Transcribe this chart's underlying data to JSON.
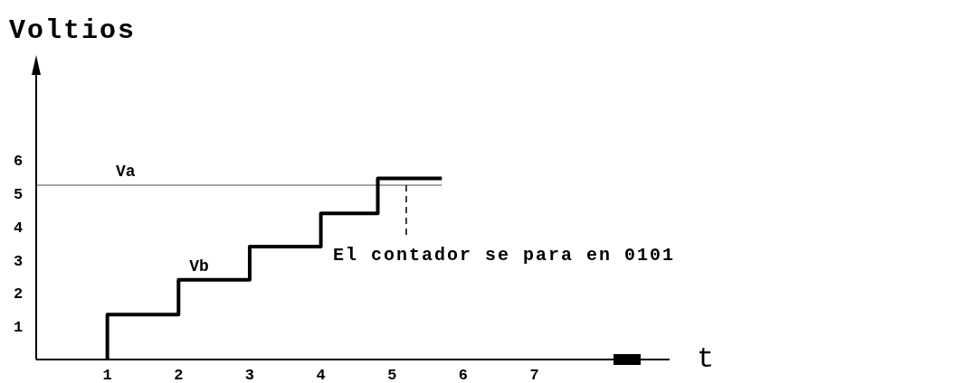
{
  "chart_data": {
    "type": "step",
    "ylabel": "Voltios",
    "xlabel": "t",
    "xlim": [
      0,
      8.9
    ],
    "ylim": [
      0,
      9
    ],
    "xticks": [
      1,
      2,
      3,
      4,
      5,
      6,
      7
    ],
    "yticks": [
      1,
      2,
      3,
      4,
      5,
      6
    ],
    "series": [
      {
        "name": "Vb",
        "color": "#000000",
        "x": [
          1,
          1,
          2,
          3,
          4,
          4.8,
          5.7
        ],
        "values": [
          0,
          1.35,
          2.4,
          3.4,
          4.4,
          5.45,
          5.45
        ]
      }
    ],
    "ref_lines": [
      {
        "axis": "y",
        "value": 5.25,
        "label": "Va",
        "color": "#888888"
      }
    ],
    "annotations": [
      {
        "text": "El contador se para en 0101",
        "x": 5.2,
        "y": 5.25
      }
    ],
    "grid": false
  }
}
